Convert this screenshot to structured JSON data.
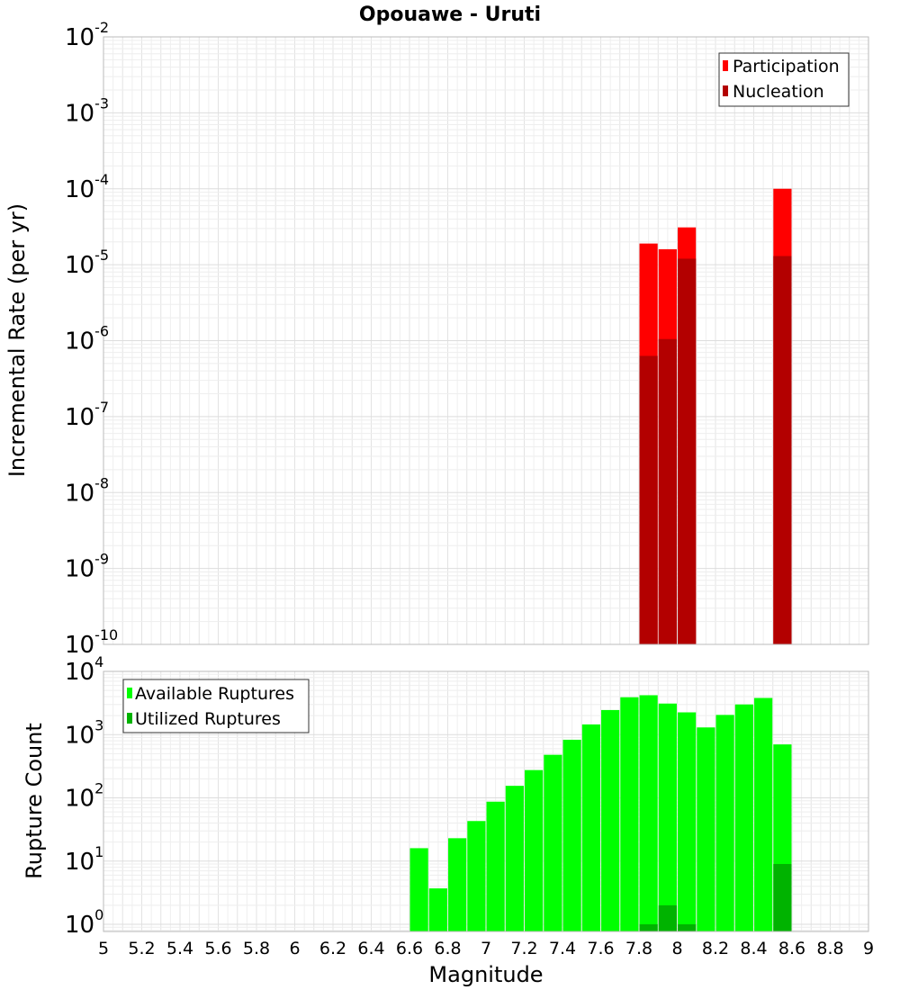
{
  "chart_title": "Opouawe - Uruti",
  "x_axis": {
    "label": "Magnitude",
    "range": [
      5,
      9
    ],
    "ticks": [
      "5",
      "5.2",
      "5.4",
      "5.6",
      "5.8",
      "6",
      "6.2",
      "6.4",
      "6.6",
      "6.8",
      "7",
      "7.2",
      "7.4",
      "7.6",
      "7.8",
      "8",
      "8.2",
      "8.4",
      "8.6",
      "8.8",
      "9"
    ]
  },
  "chart_data": [
    {
      "type": "bar",
      "ylabel": "Incremental Rate (per yr)",
      "yscale": "log",
      "ylim": [
        1e-10,
        0.01
      ],
      "y_ticks": [
        {
          "base": "10",
          "exp": "-2"
        },
        {
          "base": "10",
          "exp": "-3"
        },
        {
          "base": "10",
          "exp": "-4"
        },
        {
          "base": "10",
          "exp": "-5"
        },
        {
          "base": "10",
          "exp": "-6"
        },
        {
          "base": "10",
          "exp": "-7"
        },
        {
          "base": "10",
          "exp": "-8"
        },
        {
          "base": "10",
          "exp": "-9"
        },
        {
          "base": "10",
          "exp": "-10"
        }
      ],
      "grid": true,
      "legend_position": "top-right",
      "series": [
        {
          "name": "Participation",
          "color": "#ff0000",
          "x": [
            7.85,
            7.95,
            8.05,
            8.55
          ],
          "values": [
            1.9e-05,
            1.6e-05,
            3.1e-05,
            0.0001
          ]
        },
        {
          "name": "Nucleation",
          "color": "#b30000",
          "x": [
            7.85,
            7.95,
            8.05,
            8.55
          ],
          "values": [
            6.3e-07,
            1.05e-06,
            1.2e-05,
            1.3e-05
          ]
        }
      ]
    },
    {
      "type": "bar",
      "ylabel": "Rupture Count",
      "yscale": "log",
      "ylim": [
        0.77,
        10000
      ],
      "y_ticks": [
        {
          "base": "10",
          "exp": "4"
        },
        {
          "base": "10",
          "exp": "3"
        },
        {
          "base": "10",
          "exp": "2"
        },
        {
          "base": "10",
          "exp": "1"
        },
        {
          "base": "10",
          "exp": "0"
        }
      ],
      "grid": true,
      "legend_position": "top-left",
      "series": [
        {
          "name": "Available Ruptures",
          "color": "#00ff00",
          "x": [
            6.65,
            6.75,
            6.85,
            6.95,
            7.05,
            7.15,
            7.25,
            7.35,
            7.45,
            7.55,
            7.65,
            7.75,
            7.85,
            7.95,
            8.05,
            8.15,
            8.25,
            8.35,
            8.45,
            8.55
          ],
          "values": [
            16,
            3.7,
            23,
            43,
            87,
            155,
            275,
            480,
            830,
            1450,
            2450,
            3900,
            4200,
            3100,
            2250,
            1300,
            2050,
            3000,
            3800,
            700
          ]
        },
        {
          "name": "Utilized Ruptures",
          "color": "#00b300",
          "x": [
            7.85,
            7.95,
            8.05,
            8.55
          ],
          "values": [
            1,
            2,
            1,
            9
          ]
        }
      ]
    }
  ]
}
